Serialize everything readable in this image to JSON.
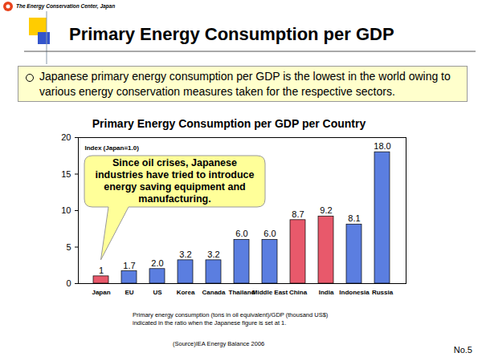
{
  "slide": {
    "organization": "The Energy Conservation Center, Japan",
    "title": "Primary Energy Consumption per GDP",
    "bullet": "Japanese primary energy consumption per GDP is the lowest in the world owing to various energy conservation measures taken for the respective sectors.",
    "page_number": "No.5"
  },
  "chart_data": {
    "type": "bar",
    "title": "Primary Energy Consumption per GDP per Country",
    "ylabel": "Index (Japan=1.0)",
    "categories": [
      "Japan",
      "EU",
      "US",
      "Korea",
      "Canada",
      "Thailand",
      "Middle East",
      "China",
      "India",
      "Indonesia",
      "Russia"
    ],
    "values": [
      1,
      1.7,
      2.0,
      3.2,
      3.2,
      6.0,
      6.0,
      8.7,
      9.2,
      8.1,
      18.0
    ],
    "value_labels": [
      "1",
      "1.7",
      "2.0",
      "3.2",
      "3.2",
      "6.0",
      "6.0",
      "8.7",
      "9.2",
      "8.1",
      "18.0"
    ],
    "colors": [
      "#e8596b",
      "#5b7ee0",
      "#5b7ee0",
      "#5b7ee0",
      "#5b7ee0",
      "#5b7ee0",
      "#5b7ee0",
      "#e8596b",
      "#e8596b",
      "#5b7ee0",
      "#5b7ee0"
    ],
    "ylim": [
      0,
      20
    ],
    "yticks": [
      0,
      5,
      10,
      15,
      20
    ],
    "grid": false,
    "data_labels": true,
    "annotation": "Since oil crises, Japanese industries have tried to introduce energy saving equipment and manufacturing.",
    "caption": "Primary energy consumption (tons in oil equivalent)/GDP (thousand US$) indicated in the ratio when the Japanese figure is set at 1.",
    "source": "(Source)IEA Energy Balance 2006"
  }
}
